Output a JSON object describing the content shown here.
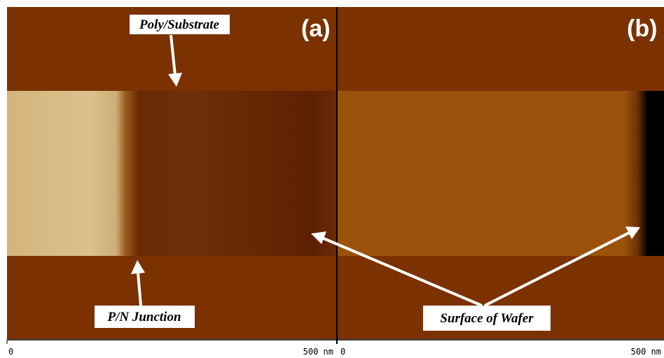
{
  "panels": [
    {
      "label": "(a)",
      "scale": {
        "start": "0",
        "end": "500 nm"
      }
    },
    {
      "label": "(b)",
      "scale": {
        "start": "0",
        "end": "500 nm"
      }
    }
  ],
  "annotations": {
    "poly_substrate": "Poly/Substrate",
    "pn_junction": "P/N Junction",
    "surface": "Surface of Wafer"
  }
}
